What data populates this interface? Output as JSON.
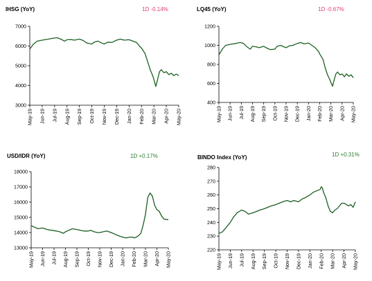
{
  "colors": {
    "line": "#1b5e20",
    "negative": "#e53a6f",
    "positive": "#2e7d32"
  },
  "chart_data": [
    {
      "type": "line",
      "title": "IHSG (YoY)",
      "change": "1D -0.14%",
      "change_direction": "negative",
      "x_ticks": [
        "May-19",
        "Jun-19",
        "Jul-19",
        "Aug-19",
        "Sep-19",
        "Oct-19",
        "Nov-19",
        "Dec-19",
        "Jan-20",
        "Feb-20",
        "Mar-20",
        "Apr-20",
        "May-20"
      ],
      "y_ticks": [
        "3000",
        "4000",
        "5000",
        "6000",
        "7000"
      ],
      "ylim": [
        3000,
        7000
      ],
      "series": [
        {
          "x": [
            0,
            0.3,
            0.6,
            1,
            1.5,
            1.9,
            2.2,
            2.5,
            2.8,
            3,
            3.3,
            3.6,
            4,
            4.3,
            4.6,
            5,
            5.2,
            5.5,
            5.8,
            6,
            6.3,
            6.6,
            7,
            7.3,
            7.6,
            8,
            8.3,
            8.6,
            8.9,
            9,
            9.3,
            9.5,
            9.7,
            9.9,
            10,
            10.15,
            10.3,
            10.45,
            10.6,
            10.8,
            11,
            11.2,
            11.4,
            11.6,
            11.8,
            12
          ],
          "values": [
            5850,
            6100,
            6250,
            6300,
            6350,
            6400,
            6420,
            6350,
            6250,
            6320,
            6330,
            6300,
            6350,
            6280,
            6150,
            6100,
            6200,
            6250,
            6150,
            6100,
            6200,
            6180,
            6300,
            6350,
            6300,
            6320,
            6250,
            6180,
            5950,
            5900,
            5600,
            5200,
            4800,
            4500,
            4300,
            3950,
            4300,
            4700,
            4800,
            4650,
            4700,
            4550,
            4620,
            4500,
            4580,
            4500
          ]
        }
      ]
    },
    {
      "type": "line",
      "title": "LQ45 (YoY)",
      "change": "1D -0.67%",
      "change_direction": "negative",
      "x_ticks": [
        "May-19",
        "Jun-19",
        "Jul-19",
        "Aug-19",
        "Sep-19",
        "Oct-19",
        "Nov-19",
        "Dec-19",
        "Jan-20",
        "Feb-20",
        "Mar-20",
        "Apr-20",
        "May-20"
      ],
      "y_ticks": [
        "400",
        "600",
        "800",
        "1000",
        "1200"
      ],
      "ylim": [
        400,
        1200
      ],
      "series": [
        {
          "x": [
            0,
            0.3,
            0.6,
            1,
            1.5,
            1.9,
            2.2,
            2.5,
            2.8,
            3,
            3.3,
            3.6,
            4,
            4.3,
            4.6,
            5,
            5.2,
            5.5,
            5.8,
            6,
            6.3,
            6.6,
            7,
            7.3,
            7.6,
            8,
            8.3,
            8.6,
            8.9,
            9,
            9.3,
            9.5,
            9.7,
            9.9,
            10,
            10.15,
            10.3,
            10.45,
            10.6,
            10.8,
            11,
            11.2,
            11.4,
            11.6,
            11.8,
            12
          ],
          "values": [
            900,
            960,
            1000,
            1010,
            1020,
            1030,
            1020,
            985,
            960,
            990,
            985,
            975,
            990,
            970,
            955,
            960,
            990,
            1000,
            985,
            975,
            995,
            1000,
            1020,
            1030,
            1015,
            1025,
            1000,
            975,
            935,
            910,
            850,
            760,
            690,
            640,
            610,
            570,
            640,
            700,
            720,
            690,
            700,
            670,
            700,
            675,
            690,
            660
          ]
        }
      ]
    },
    {
      "type": "line",
      "title": "USD/IDR  (YoY)",
      "change": "1D +0.17%",
      "change_direction": "positive",
      "x_ticks": [
        "May-19",
        "Jun-19",
        "Jul-19",
        "Aug-19",
        "Sep-19",
        "Oct-19",
        "Nov-19",
        "Dec-19",
        "Jan-20",
        "Feb-20",
        "Mar-20",
        "Apr-20",
        "May-20"
      ],
      "y_ticks": [
        "13000",
        "14000",
        "15000",
        "16000",
        "17000",
        "18000"
      ],
      "ylim": [
        13000,
        18000
      ],
      "series": [
        {
          "x": [
            0,
            0.3,
            0.6,
            1,
            1.4,
            1.8,
            2.2,
            2.5,
            2.8,
            3,
            3.3,
            3.6,
            4,
            4.3,
            4.6,
            5,
            5.2,
            5.5,
            5.8,
            6,
            6.3,
            6.6,
            7,
            7.3,
            7.6,
            8,
            8.3,
            8.6,
            8.9,
            9,
            9.2,
            9.4,
            9.6,
            9.8,
            10,
            10.2,
            10.4,
            10.6,
            10.8,
            11,
            11.2,
            11.4,
            11.6,
            11.8,
            12
          ],
          "values": [
            14450,
            14350,
            14250,
            14300,
            14200,
            14150,
            14100,
            14050,
            13950,
            14050,
            14150,
            14250,
            14200,
            14150,
            14100,
            14100,
            14150,
            14050,
            14000,
            14000,
            14050,
            14100,
            14000,
            13900,
            13800,
            13700,
            13650,
            13700,
            13700,
            13650,
            13700,
            13800,
            13950,
            14500,
            15200,
            16300,
            16600,
            16400,
            15800,
            15500,
            15400,
            15100,
            14900,
            14850,
            14850
          ]
        }
      ]
    },
    {
      "type": "line",
      "title": "BINDO Index (YoY)",
      "change": "1D +0.31%",
      "change_direction": "positive",
      "x_ticks": [
        "May-19",
        "Jun-19",
        "Jul-19",
        "Aug-19",
        "Sep-19",
        "Oct-19",
        "Nov-19",
        "Dec-19",
        "Jan-20",
        "Feb-20",
        "Mar-20",
        "Apr-20",
        "May-20"
      ],
      "y_ticks": [
        "220",
        "230",
        "240",
        "250",
        "260",
        "270",
        "280"
      ],
      "ylim": [
        220,
        280
      ],
      "series": [
        {
          "x": [
            0,
            0.3,
            0.6,
            1,
            1.3,
            1.6,
            2,
            2.3,
            2.6,
            3,
            3.3,
            3.6,
            4,
            4.3,
            4.6,
            5,
            5.3,
            5.6,
            6,
            6.3,
            6.6,
            7,
            7.3,
            7.6,
            8,
            8.3,
            8.6,
            8.9,
            9,
            9.1,
            9.2,
            9.4,
            9.6,
            9.8,
            10,
            10.2,
            10.4,
            10.6,
            10.8,
            11,
            11.2,
            11.4,
            11.6,
            11.8,
            12
          ],
          "values": [
            232,
            233,
            236,
            240,
            244,
            247,
            249,
            248,
            246,
            247,
            248,
            249,
            250,
            251,
            252,
            253,
            254,
            255,
            256,
            255,
            256,
            255,
            257,
            258,
            260,
            262,
            263,
            264,
            266,
            265,
            262,
            258,
            252,
            248,
            247,
            249,
            250,
            252,
            254,
            254,
            253,
            252,
            253,
            251,
            255
          ]
        }
      ]
    }
  ]
}
